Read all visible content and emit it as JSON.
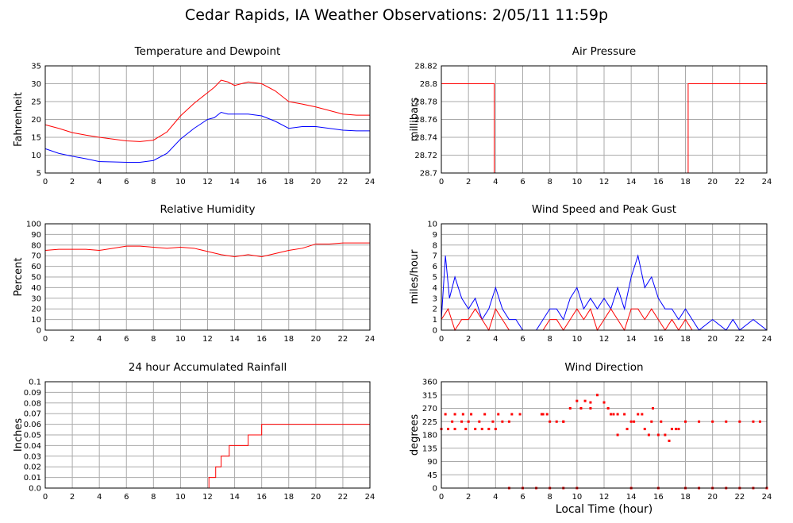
{
  "page": {
    "title": "Cedar Rapids, IA Weather Observations: 2/05/11 11:59p",
    "xlabel": "Local Time (hour)"
  },
  "colors": {
    "series_red": "#ff0000",
    "series_blue": "#0000ff",
    "grid": "#aaaaaa",
    "frame": "#000000"
  },
  "chart_data": [
    {
      "id": "temp",
      "type": "line",
      "title": "Temperature and Dewpoint",
      "ylabel": "Fahrenheit",
      "xlim": [
        0,
        24
      ],
      "ylim": [
        5,
        35
      ],
      "xticks": [
        "0",
        "2",
        "4",
        "6",
        "8",
        "10",
        "12",
        "14",
        "16",
        "18",
        "20",
        "22",
        "24"
      ],
      "yticks": [
        "5",
        "10",
        "15",
        "20",
        "25",
        "30",
        "35"
      ],
      "grid": true,
      "series": [
        {
          "color": "#ff0000",
          "x": [
            0,
            1,
            2,
            3,
            4,
            5,
            6,
            7,
            8,
            9,
            10,
            11,
            12,
            12.5,
            13,
            13.5,
            14,
            15,
            16,
            17,
            18,
            19,
            20,
            21,
            22,
            23,
            24
          ],
          "y": [
            18.5,
            17.5,
            16.3,
            15.6,
            15,
            14.5,
            14,
            13.8,
            14.2,
            16.5,
            21,
            24.5,
            27.5,
            29,
            31,
            30.5,
            29.5,
            30.5,
            30,
            28,
            25,
            24.3,
            23.5,
            22.5,
            21.5,
            21.2,
            21.2
          ]
        },
        {
          "color": "#0000ff",
          "x": [
            0,
            1,
            2,
            3,
            4,
            5,
            6,
            7,
            8,
            9,
            10,
            11,
            12,
            12.5,
            13,
            13.5,
            14,
            15,
            16,
            17,
            18,
            19,
            20,
            21,
            22,
            23,
            24
          ],
          "y": [
            11.8,
            10.5,
            9.7,
            9,
            8.2,
            8.1,
            8,
            8,
            8.5,
            10.5,
            14.5,
            17.5,
            20,
            20.5,
            22,
            21.5,
            21.5,
            21.5,
            21,
            19.5,
            17.5,
            18,
            18,
            17.5,
            17,
            16.8,
            16.8
          ]
        }
      ]
    },
    {
      "id": "pressure",
      "type": "line",
      "title": "Air Pressure",
      "ylabel": "millibars",
      "xlim": [
        0,
        24
      ],
      "ylim": [
        28.7,
        28.82
      ],
      "xticks": [
        "0",
        "2",
        "4",
        "6",
        "8",
        "10",
        "12",
        "14",
        "16",
        "18",
        "20",
        "22",
        "24"
      ],
      "yticks": [
        "28.7",
        "28.72",
        "28.74",
        "28.76",
        "28.78",
        "28.8",
        "28.82"
      ],
      "grid": true,
      "series": [
        {
          "color": "#ff0000",
          "x": [
            0,
            3.9,
            3.9,
            18.2,
            18.2,
            24
          ],
          "y": [
            28.8,
            28.8,
            28.7,
            28.7,
            28.8,
            28.8
          ]
        }
      ]
    },
    {
      "id": "humidity",
      "type": "line",
      "title": "Relative Humidity",
      "ylabel": "Percent",
      "xlim": [
        0,
        24
      ],
      "ylim": [
        0,
        100
      ],
      "xticks": [
        "0",
        "2",
        "4",
        "6",
        "8",
        "10",
        "12",
        "14",
        "16",
        "18",
        "20",
        "22",
        "24"
      ],
      "yticks": [
        "0",
        "10",
        "20",
        "30",
        "40",
        "50",
        "60",
        "70",
        "80",
        "90",
        "100"
      ],
      "grid": true,
      "series": [
        {
          "color": "#ff0000",
          "x": [
            0,
            1,
            2,
            3,
            4,
            5,
            6,
            7,
            8,
            9,
            10,
            11,
            12,
            13,
            14,
            15,
            16,
            17,
            18,
            19,
            20,
            21,
            22,
            23,
            24
          ],
          "y": [
            75,
            76,
            76,
            76,
            75,
            77,
            79,
            79,
            78,
            77,
            78,
            77,
            74,
            71,
            69,
            71,
            69,
            72,
            75,
            77,
            81,
            81,
            82,
            82,
            82
          ]
        }
      ]
    },
    {
      "id": "wind",
      "type": "line",
      "title": "Wind Speed and Peak Gust",
      "ylabel": "miles/hour",
      "xlim": [
        0,
        24
      ],
      "ylim": [
        0,
        10
      ],
      "xticks": [
        "0",
        "2",
        "4",
        "6",
        "8",
        "10",
        "12",
        "14",
        "16",
        "18",
        "20",
        "22",
        "24"
      ],
      "yticks": [
        "0",
        "1",
        "2",
        "3",
        "4",
        "5",
        "6",
        "7",
        "8",
        "9",
        "10"
      ],
      "grid": true,
      "series": [
        {
          "color": "#0000ff",
          "x": [
            0,
            0.3,
            0.6,
            1,
            1.5,
            2,
            2.5,
            3,
            3.5,
            4,
            4.5,
            5,
            5.5,
            6,
            7,
            7.5,
            8,
            8.5,
            9,
            9.5,
            10,
            10.5,
            11,
            11.5,
            12,
            12.5,
            13,
            13.5,
            14,
            14.5,
            15,
            15.5,
            16,
            16.5,
            17,
            17.5,
            18,
            18.5,
            19,
            20,
            21,
            21.5,
            22,
            23,
            24
          ],
          "y": [
            1,
            7,
            3,
            5,
            3,
            2,
            3,
            1,
            2,
            4,
            2,
            1,
            1,
            0,
            0,
            1,
            2,
            2,
            1,
            3,
            4,
            2,
            3,
            2,
            3,
            2,
            4,
            2,
            5,
            7,
            4,
            5,
            3,
            2,
            2,
            1,
            2,
            1,
            0,
            1,
            0,
            1,
            0,
            1,
            0
          ]
        },
        {
          "color": "#ff0000",
          "x": [
            0,
            0.5,
            1,
            1.5,
            2,
            2.5,
            3,
            3.5,
            4,
            4.5,
            5,
            7.5,
            8,
            8.5,
            9,
            9.5,
            10,
            10.5,
            11,
            11.5,
            12,
            12.5,
            13,
            13.5,
            14,
            14.5,
            15,
            15.5,
            16,
            16.5,
            17,
            17.5,
            18,
            18.5
          ],
          "y": [
            1,
            2,
            0,
            1,
            1,
            2,
            1,
            0,
            2,
            1,
            0,
            0,
            1,
            1,
            0,
            1,
            2,
            1,
            2,
            0,
            1,
            2,
            1,
            0,
            2,
            2,
            1,
            2,
            1,
            0,
            1,
            0,
            1,
            0
          ]
        }
      ]
    },
    {
      "id": "rain",
      "type": "line",
      "title": "24 hour Accumulated Rainfall",
      "ylabel": "Inches",
      "xlim": [
        0,
        24
      ],
      "ylim": [
        0,
        0.1
      ],
      "xticks": [
        "0",
        "2",
        "4",
        "6",
        "8",
        "10",
        "12",
        "14",
        "16",
        "18",
        "20",
        "22",
        "24"
      ],
      "yticks": [
        "0.0",
        "0.01",
        "0.02",
        "0.03",
        "0.04",
        "0.05",
        "0.06",
        "0.07",
        "0.08",
        "0.09",
        "0.1"
      ],
      "grid": true,
      "series": [
        {
          "color": "#ff0000",
          "step": true,
          "x": [
            0,
            12.1,
            12.6,
            13,
            13.6,
            15,
            16,
            24
          ],
          "y": [
            0,
            0.01,
            0.02,
            0.03,
            0.04,
            0.05,
            0.06,
            0.06
          ]
        }
      ]
    },
    {
      "id": "direction",
      "type": "scatter",
      "title": "Wind Direction",
      "ylabel": "degrees",
      "xlim": [
        0,
        24
      ],
      "ylim": [
        0,
        360
      ],
      "xticks": [
        "0",
        "2",
        "4",
        "6",
        "8",
        "10",
        "12",
        "14",
        "16",
        "18",
        "20",
        "22",
        "24"
      ],
      "yticks": [
        "0",
        "45",
        "90",
        "135",
        "180",
        "225",
        "270",
        "315",
        "360"
      ],
      "grid": true,
      "series": [
        {
          "color": "#ff0000",
          "x": [
            0,
            0.5,
            1,
            1.5,
            2,
            2.5,
            3,
            3.5,
            4,
            4.5,
            5,
            7.5,
            8,
            8.5,
            9,
            9.5,
            10,
            10.3,
            10.6,
            11,
            11.5,
            12,
            12.3,
            12.7,
            13,
            13.5,
            14,
            14.5,
            15,
            15.5,
            16,
            16.5,
            17,
            17.5,
            18,
            19,
            20,
            21,
            22,
            23,
            23.5,
            0.3,
            1,
            1.6,
            2.2,
            3.2,
            4.2,
            5.2,
            5.8,
            7.4,
            7.8,
            9,
            11,
            12.5,
            14.2,
            14.8,
            15.6,
            16.2,
            5,
            6,
            7,
            8,
            9,
            10,
            14,
            16,
            18,
            19,
            20,
            21,
            22,
            23,
            24,
            0.8,
            1.8,
            2.8,
            3.8,
            13,
            13.7,
            15.3,
            16.8,
            17.3
          ],
          "y": [
            200,
            200,
            200,
            225,
            225,
            200,
            200,
            200,
            200,
            225,
            225,
            250,
            225,
            225,
            225,
            270,
            295,
            270,
            295,
            270,
            315,
            290,
            270,
            250,
            250,
            250,
            225,
            250,
            200,
            225,
            180,
            180,
            200,
            200,
            225,
            225,
            225,
            225,
            225,
            225,
            225,
            250,
            250,
            250,
            250,
            250,
            250,
            250,
            250,
            250,
            250,
            225,
            290,
            250,
            225,
            250,
            270,
            225,
            0,
            0,
            0,
            0,
            0,
            0,
            0,
            0,
            0,
            0,
            0,
            0,
            0,
            0,
            0,
            225,
            200,
            225,
            225,
            180,
            200,
            180,
            160,
            200
          ]
        }
      ]
    }
  ]
}
